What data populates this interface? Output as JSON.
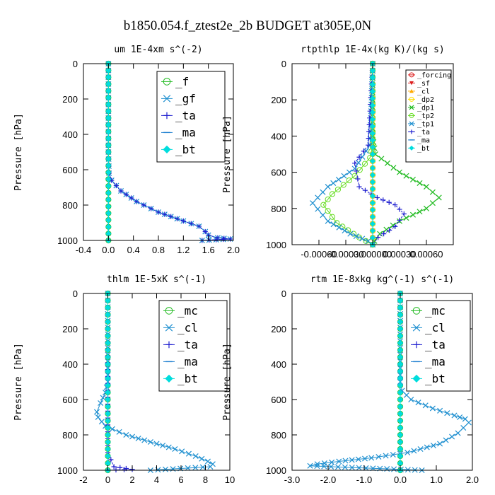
{
  "figure_title": "b1850.054.f_ztest2e_2b  BUDGET at305E,0N",
  "chart_data": [
    {
      "type": "line",
      "title": "um   1E-4xm s^(-2)",
      "ylabel": "Pressure [hPa]",
      "ylim": [
        0,
        1000
      ],
      "y_inverted": true,
      "yticks": [
        0,
        200,
        400,
        600,
        800,
        1000
      ],
      "xlim": [
        -0.4,
        2.0
      ],
      "xticks": [
        -0.4,
        0.0,
        0.4,
        0.8,
        1.2,
        1.6,
        2.0
      ],
      "xtick_labels": [
        "-0.4",
        "0.0",
        "0.4",
        "0.8",
        "1.2",
        "1.6",
        "2.0"
      ],
      "legend_position": "top-right",
      "series": [
        {
          "name": "_f",
          "color": "#22bb22",
          "marker": "circle",
          "x": [
            0,
            0,
            0
          ],
          "y": [
            0,
            500,
            1000
          ]
        },
        {
          "name": "_gf",
          "color": "#2090d0",
          "marker": "x",
          "x": [
            0.0,
            0.0,
            0.01,
            0.05,
            0.2,
            0.45,
            0.8,
            1.2,
            1.45,
            1.55,
            1.6,
            1.75,
            1.95,
            1.5
          ],
          "y": [
            0,
            500,
            620,
            660,
            720,
            780,
            840,
            890,
            920,
            950,
            970,
            985,
            992,
            1000
          ]
        },
        {
          "name": "_ta",
          "color": "#2020d0",
          "marker": "plus",
          "x": [
            0.0,
            0.0,
            0.01,
            0.05,
            0.2,
            0.45,
            0.8,
            1.2,
            1.45,
            1.55,
            1.6,
            1.75,
            1.95,
            1.5
          ],
          "y": [
            0,
            500,
            620,
            660,
            720,
            780,
            840,
            890,
            920,
            950,
            970,
            985,
            992,
            1000
          ]
        },
        {
          "name": "_ma",
          "color": "#1e7fd0",
          "marker": "dash",
          "x": [
            0,
            0,
            0
          ],
          "y": [
            0,
            500,
            1000
          ]
        },
        {
          "name": "_bt",
          "color": "#00dddd",
          "marker": "diamond",
          "x": [
            0,
            0,
            0
          ],
          "y": [
            0,
            500,
            1000
          ]
        }
      ]
    },
    {
      "type": "line",
      "title": "rtpthlp   1E-4x(kg K)/(kg s)",
      "ylabel": "Pressure [hPa]",
      "ylim": [
        0,
        1000
      ],
      "y_inverted": true,
      "yticks": [
        0,
        200,
        400,
        600,
        800,
        1000
      ],
      "xlim": [
        -0.0009,
        0.0009
      ],
      "xticks": [
        -0.0006,
        -0.0003,
        0.0,
        0.0003,
        0.0006
      ],
      "xtick_labels": [
        "-0.00060",
        "-0.00030",
        "0.000000",
        "0.00030",
        "0.00060"
      ],
      "legend_position": "top-right",
      "series": [
        {
          "name": "_forcing",
          "color": "#dd2020",
          "marker": "circle",
          "x": [
            0,
            0
          ],
          "y": [
            0,
            1000
          ]
        },
        {
          "name": "_sf",
          "color": "#dd2020",
          "marker": "triangle-down",
          "x": [
            0,
            0
          ],
          "y": [
            0,
            1000
          ]
        },
        {
          "name": "_cl",
          "color": "#ffaa00",
          "marker": "triangle-up",
          "x": [
            0,
            0
          ],
          "y": [
            0,
            1000
          ]
        },
        {
          "name": "_dp2",
          "color": "#ffdd00",
          "marker": "circle",
          "x": [
            0,
            0
          ],
          "y": [
            0,
            1000
          ]
        },
        {
          "name": "_dp1",
          "color": "#22bb22",
          "marker": "x",
          "x": [
            0,
            0,
            3e-05,
            0.0003,
            0.0006,
            0.00074,
            0.0006,
            0.0003,
            8e-05,
            2e-05,
            0
          ],
          "y": [
            0,
            400,
            500,
            600,
            680,
            740,
            800,
            870,
            940,
            980,
            1000
          ]
        },
        {
          "name": "_tp2",
          "color": "#66dd22",
          "marker": "circle",
          "x": [
            0,
            0,
            -3e-05,
            -0.0002,
            -0.00045,
            -0.00055,
            -0.0004,
            -0.00015,
            0
          ],
          "y": [
            0,
            450,
            520,
            620,
            720,
            780,
            880,
            960,
            1000
          ]
        },
        {
          "name": "_tp1",
          "color": "#2090d0",
          "marker": "x",
          "x": [
            0,
            -3e-05,
            -0.0002,
            -0.0005,
            -0.00067,
            -0.0005,
            -0.00025,
            -5e-05,
            0
          ],
          "y": [
            0,
            450,
            580,
            680,
            770,
            870,
            940,
            980,
            1000
          ]
        },
        {
          "name": "_ta",
          "color": "#2020d0",
          "marker": "plus",
          "x": [
            0,
            -5e-05,
            -0.0002,
            -0.00015,
            5e-05,
            0.00025,
            0.00035,
            0.00025,
            6e-05,
            0
          ],
          "y": [
            0,
            450,
            550,
            680,
            740,
            780,
            830,
            900,
            960,
            1000
          ]
        },
        {
          "name": "_ma",
          "color": "#1e7fd0",
          "marker": "dash",
          "x": [
            0,
            0
          ],
          "y": [
            0,
            1000
          ]
        },
        {
          "name": "_bt",
          "color": "#00dddd",
          "marker": "diamond",
          "x": [
            0,
            0
          ],
          "y": [
            0,
            1000
          ]
        }
      ]
    },
    {
      "type": "line",
      "title": "thlm   1E-5xK s^(-1)",
      "ylabel": "Pressure [hPa]",
      "ylim": [
        0,
        1000
      ],
      "y_inverted": true,
      "yticks": [
        0,
        200,
        400,
        600,
        800,
        1000
      ],
      "xlim": [
        -2,
        10
      ],
      "xticks": [
        -2,
        0,
        2,
        4,
        6,
        8,
        10
      ],
      "xtick_labels": [
        "-2",
        "0",
        "2",
        "4",
        "6",
        "8",
        "10"
      ],
      "legend_position": "top-right",
      "series": [
        {
          "name": "_mc",
          "color": "#22bb22",
          "marker": "circle",
          "x": [
            0,
            0
          ],
          "y": [
            0,
            1000
          ]
        },
        {
          "name": "_cl",
          "color": "#2090d0",
          "marker": "x",
          "x": [
            0,
            0,
            -0.2,
            -0.6,
            -0.9,
            -0.8,
            -0.2,
            1.5,
            3.5,
            5.5,
            7.2,
            8.2,
            8.6,
            8.4,
            3.5
          ],
          "y": [
            0,
            500,
            560,
            620,
            670,
            700,
            750,
            800,
            840,
            880,
            920,
            950,
            965,
            980,
            1000
          ]
        },
        {
          "name": "_ta",
          "color": "#2020d0",
          "marker": "plus",
          "x": [
            0,
            0,
            0.5,
            2.0,
            0
          ],
          "y": [
            0,
            900,
            980,
            995,
            1000
          ]
        },
        {
          "name": "_ma",
          "color": "#1e7fd0",
          "marker": "dash",
          "x": [
            0,
            0
          ],
          "y": [
            0,
            1000
          ]
        },
        {
          "name": "_bt",
          "color": "#00dddd",
          "marker": "diamond",
          "x": [
            0,
            0
          ],
          "y": [
            0,
            1000
          ]
        }
      ]
    },
    {
      "type": "line",
      "title": "rtm   1E-8xkg kg^(-1) s^(-1)",
      "ylabel": "Pressure [hPa]",
      "ylim": [
        0,
        1000
      ],
      "y_inverted": true,
      "yticks": [
        0,
        200,
        400,
        600,
        800,
        1000
      ],
      "xlim": [
        -3.0,
        2.0
      ],
      "xticks": [
        -3.0,
        -2.0,
        -1.0,
        0.0,
        1.0,
        2.0
      ],
      "xtick_labels": [
        "-3.0",
        "-2.0",
        "-1.0",
        "0.0",
        "1.0",
        "2.0"
      ],
      "legend_position": "top-right",
      "series": [
        {
          "name": "_mc",
          "color": "#22bb22",
          "marker": "circle",
          "x": [
            0,
            0
          ],
          "y": [
            0,
            1000
          ]
        },
        {
          "name": "_cl",
          "color": "#2090d0",
          "marker": "x",
          "x": [
            0,
            0,
            0.05,
            0.3,
            0.9,
            1.5,
            1.8,
            1.9,
            1.6,
            1.1,
            0.2,
            -0.8,
            -1.7,
            -2.3,
            -2.5,
            0.6
          ],
          "y": [
            0,
            500,
            550,
            600,
            650,
            690,
            710,
            730,
            790,
            850,
            900,
            930,
            950,
            965,
            975,
            1000
          ]
        },
        {
          "name": "_ta",
          "color": "#2020d0",
          "marker": "plus",
          "x": [
            0,
            0
          ],
          "y": [
            0,
            1000
          ]
        },
        {
          "name": "_ma",
          "color": "#1e7fd0",
          "marker": "dash",
          "x": [
            0,
            0
          ],
          "y": [
            0,
            1000
          ]
        },
        {
          "name": "_bt",
          "color": "#00dddd",
          "marker": "diamond",
          "x": [
            0,
            0
          ],
          "y": [
            0,
            1000
          ]
        }
      ]
    }
  ]
}
